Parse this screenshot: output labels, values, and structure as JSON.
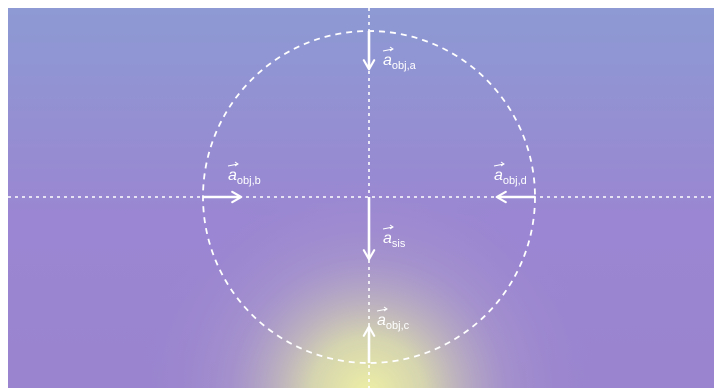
{
  "colors": {
    "background_top": "#8e9ad4",
    "background_mid": "#9985d0",
    "glow": "#e6eaa6",
    "lines": "#ffffff"
  },
  "vectors": {
    "obj_a": {
      "symbol": "a",
      "subscript": "obj,a",
      "direction": "down"
    },
    "obj_b": {
      "symbol": "a",
      "subscript": "obj,b",
      "direction": "right"
    },
    "obj_c": {
      "symbol": "a",
      "subscript": "obj,c",
      "direction": "up"
    },
    "obj_d": {
      "symbol": "a",
      "subscript": "obj,d",
      "direction": "left"
    },
    "sis": {
      "symbol": "a",
      "subscript": "sis",
      "direction": "down"
    }
  }
}
